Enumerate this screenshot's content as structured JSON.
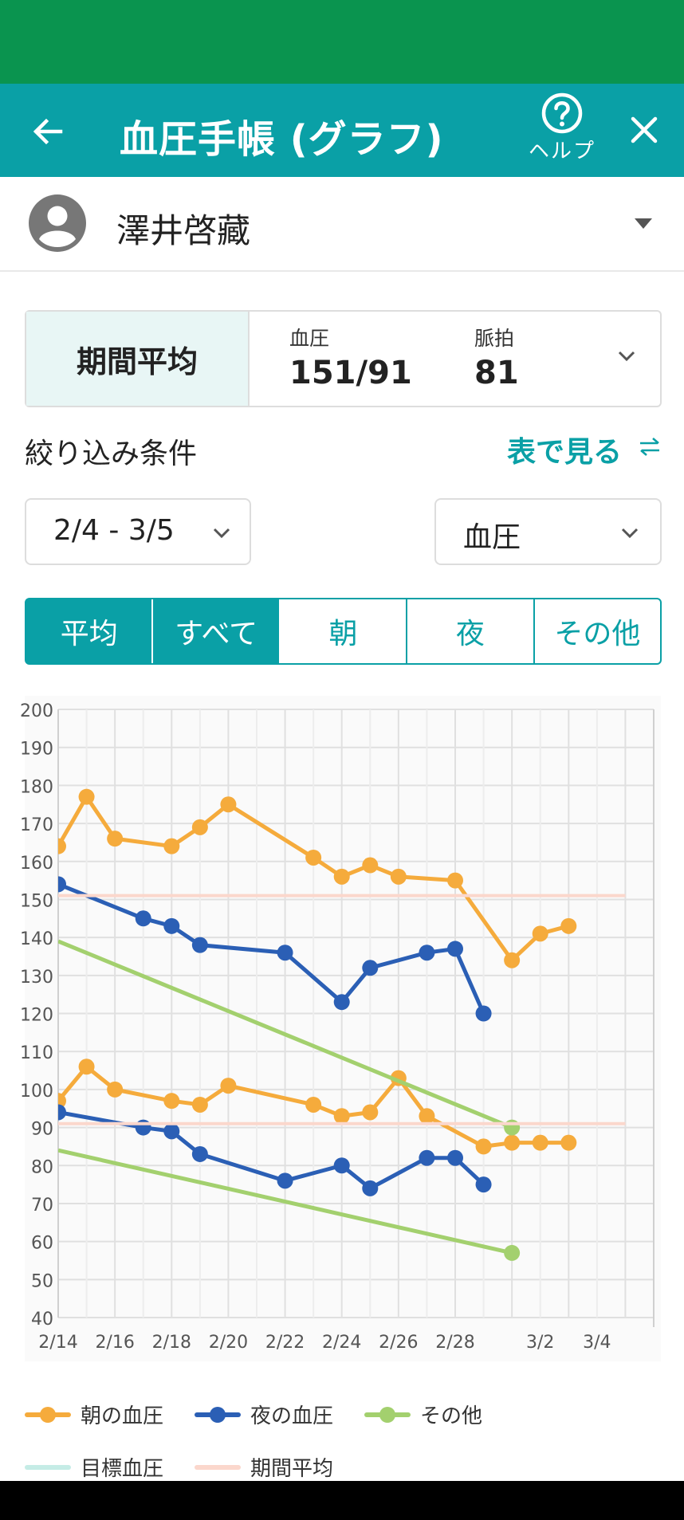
{
  "header": {
    "title": "血圧手帳 (グラフ)",
    "help_label": "ヘルプ"
  },
  "user": {
    "name": "澤井啓藏"
  },
  "summary": {
    "label": "期間平均",
    "bp_caption": "血圧",
    "bp_value": "151/91",
    "pulse_caption": "脈拍",
    "pulse_value": "81"
  },
  "filter": {
    "label": "絞り込み条件",
    "table_link": "表で見る",
    "date_range": "2/4 - 3/5",
    "metric": "血圧"
  },
  "tabs": [
    {
      "label": "平均",
      "active": true
    },
    {
      "label": "すべて",
      "active": true
    },
    {
      "label": "朝",
      "active": false
    },
    {
      "label": "夜",
      "active": false
    },
    {
      "label": "その他",
      "active": false
    }
  ],
  "colors": {
    "accent": "#0aa0a6",
    "status_bar": "#0a944f",
    "morning": "#f5ab3c",
    "night": "#2b5fb5",
    "other": "#a3d06e",
    "target": "#c5ece6",
    "average": "#fbd7cc"
  },
  "chart_data": {
    "type": "line",
    "x_tick_labels": [
      "2/14",
      "2/16",
      "2/18",
      "2/20",
      "2/22",
      "2/24",
      "2/26",
      "2/28",
      "3/2",
      "3/4"
    ],
    "x_range": [
      "2/14",
      "3/6"
    ],
    "ylim": [
      40,
      200
    ],
    "y_ticks": [
      40,
      50,
      60,
      70,
      80,
      90,
      100,
      110,
      120,
      130,
      140,
      150,
      160,
      170,
      180,
      190,
      200
    ],
    "grid": true,
    "series": [
      {
        "name": "朝の血圧",
        "role": "systolic",
        "color": "#f5ab3c",
        "x": [
          "2/14",
          "2/15",
          "2/16",
          "2/18",
          "2/19",
          "2/20",
          "2/23",
          "2/24",
          "2/25",
          "2/26",
          "2/28",
          "3/1",
          "3/2",
          "3/3"
        ],
        "values": [
          164,
          177,
          166,
          164,
          169,
          175,
          161,
          156,
          159,
          156,
          155,
          134,
          141,
          143
        ]
      },
      {
        "name": "朝の血圧",
        "role": "diastolic",
        "color": "#f5ab3c",
        "x": [
          "2/14",
          "2/15",
          "2/16",
          "2/18",
          "2/19",
          "2/20",
          "2/23",
          "2/24",
          "2/25",
          "2/26",
          "2/27",
          "2/29",
          "3/1",
          "3/2",
          "3/3"
        ],
        "values": [
          97,
          106,
          100,
          97,
          96,
          101,
          96,
          93,
          94,
          103,
          93,
          85,
          86,
          86,
          86
        ]
      },
      {
        "name": "夜の血圧",
        "role": "systolic",
        "color": "#2b5fb5",
        "x": [
          "2/14",
          "2/17",
          "2/18",
          "2/19",
          "2/22",
          "2/24",
          "2/25",
          "2/27",
          "2/28",
          "2/29"
        ],
        "values": [
          154,
          145,
          143,
          138,
          136,
          123,
          132,
          136,
          137,
          120
        ]
      },
      {
        "name": "夜の血圧",
        "role": "diastolic",
        "color": "#2b5fb5",
        "x": [
          "2/14",
          "2/17",
          "2/18",
          "2/19",
          "2/22",
          "2/24",
          "2/25",
          "2/27",
          "2/28",
          "2/29"
        ],
        "values": [
          94,
          90,
          89,
          83,
          76,
          80,
          74,
          82,
          82,
          75
        ]
      },
      {
        "name": "その他",
        "role": "systolic",
        "color": "#a3d06e",
        "x": [
          "2/14",
          "3/1"
        ],
        "values": [
          139,
          90
        ]
      },
      {
        "name": "その他",
        "role": "diastolic",
        "color": "#a3d06e",
        "x": [
          "2/14",
          "3/1"
        ],
        "values": [
          84,
          57
        ]
      },
      {
        "name": "期間平均",
        "role": "systolic-average",
        "color": "#fbd7cc",
        "x": [
          "2/14",
          "3/5"
        ],
        "values": [
          151,
          151
        ]
      },
      {
        "name": "期間平均",
        "role": "diastolic-average",
        "color": "#fbd7cc",
        "x": [
          "2/14",
          "3/5"
        ],
        "values": [
          91,
          91
        ]
      }
    ],
    "legend": [
      "朝の血圧",
      "夜の血圧",
      "その他",
      "目標血圧",
      "期間平均"
    ],
    "legend_placement": "bottom"
  },
  "legend": {
    "morning": "朝の血圧",
    "night": "夜の血圧",
    "other": "その他",
    "target": "目標血圧",
    "average": "期間平均"
  }
}
